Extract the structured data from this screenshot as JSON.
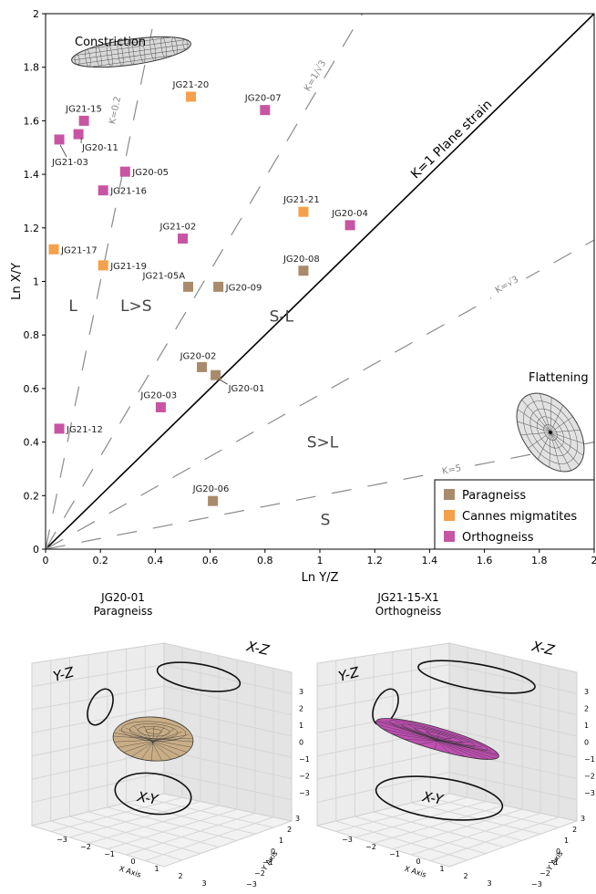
{
  "chart_data": [
    {
      "type": "scatter",
      "title": "",
      "xlabel": "Ln Y/Z",
      "ylabel": "Ln X/Y",
      "xlim": [
        0,
        2
      ],
      "ylim": [
        0,
        2
      ],
      "xticks": [
        "0",
        "0.2",
        "0.4",
        "0.6",
        "0.8",
        "1",
        "1.2",
        "1.4",
        "1.6",
        "1.8",
        "2"
      ],
      "yticks": [
        "0",
        "0.2",
        "0.4",
        "0.6",
        "0.8",
        "1",
        "1.2",
        "1.4",
        "1.6",
        "1.8",
        "2"
      ],
      "grid": false,
      "legend_position": "bottom-right",
      "series": [
        {
          "name": "Paragneiss",
          "color": "#a98b6b",
          "points": [
            {
              "label": "JG20-02",
              "x": 0.57,
              "y": 0.68
            },
            {
              "label": "JG20-01",
              "x": 0.62,
              "y": 0.65
            },
            {
              "label": "JG21-05A",
              "x": 0.52,
              "y": 0.98
            },
            {
              "label": "JG20-09",
              "x": 0.63,
              "y": 0.98
            },
            {
              "label": "JG20-08",
              "x": 0.94,
              "y": 1.04
            },
            {
              "label": "JG20-06",
              "x": 0.61,
              "y": 0.18
            }
          ]
        },
        {
          "name": "Cannes migmatites",
          "color": "#f5a04a",
          "points": [
            {
              "label": "JG21-20",
              "x": 0.53,
              "y": 1.69
            },
            {
              "label": "JG21-21",
              "x": 0.94,
              "y": 1.26
            },
            {
              "label": "JG21-17",
              "x": 0.03,
              "y": 1.12
            },
            {
              "label": "JG21-19",
              "x": 0.21,
              "y": 1.06
            }
          ]
        },
        {
          "name": "Orthogneiss",
          "color": "#c755a3",
          "points": [
            {
              "label": "JG21-15",
              "x": 0.14,
              "y": 1.6
            },
            {
              "label": "JG20-11",
              "x": 0.12,
              "y": 1.55
            },
            {
              "label": "JG21-03",
              "x": 0.05,
              "y": 1.53
            },
            {
              "label": "JG20-07",
              "x": 0.8,
              "y": 1.64
            },
            {
              "label": "JG20-05",
              "x": 0.29,
              "y": 1.41
            },
            {
              "label": "JG21-16",
              "x": 0.21,
              "y": 1.34
            },
            {
              "label": "JG21-02",
              "x": 0.5,
              "y": 1.16
            },
            {
              "label": "JG20-04",
              "x": 1.11,
              "y": 1.21
            },
            {
              "label": "JG20-03",
              "x": 0.42,
              "y": 0.53
            },
            {
              "label": "JG21-12",
              "x": 0.05,
              "y": 0.45
            }
          ]
        }
      ],
      "reference_lines": [
        {
          "label": "K=1 Plane strain",
          "k": 1,
          "style": "solid"
        },
        {
          "label": "K=0.2",
          "k": 0.2,
          "style": "dashed"
        },
        {
          "label": "K=1/√3",
          "k": 0.57735,
          "style": "dashed"
        },
        {
          "label": "K=√3",
          "k": 1.73205,
          "style": "dashed"
        },
        {
          "label": "K=5",
          "k": 5,
          "style": "dashed"
        }
      ],
      "field_labels": [
        "L",
        "L>S",
        "S-L",
        "S>L",
        "S"
      ],
      "annotations": [
        "Constriction",
        "Flattening"
      ]
    },
    {
      "type": "3d-ellipsoid",
      "title": "JG20-01\nParagneiss",
      "title_lines": [
        "JG20-01",
        "Paragneiss"
      ],
      "fill_color": "#c9ad86",
      "axes": [
        "X Axis",
        "Y Axis",
        "Z Axis"
      ],
      "axis_range": [
        -3,
        3
      ],
      "x_ticks": [
        "−3",
        "−2",
        "−1",
        "0",
        "1",
        "2",
        "3"
      ],
      "y_ticks": [
        "−3",
        "−2",
        "−1",
        "0",
        "1",
        "2",
        "3"
      ],
      "z_ticks": [
        "3",
        "2",
        "1",
        "0",
        "−1",
        "−2",
        "−3"
      ],
      "plane_labels": [
        "Y-Z",
        "X-Z",
        "X-Y"
      ]
    },
    {
      "type": "3d-ellipsoid",
      "title": "JG21-15-X1\nOrthogneiss",
      "title_lines": [
        "JG21-15-X1",
        "Orthogneiss"
      ],
      "fill_color": "#c04fb3",
      "axes": [
        "X Axis",
        "Y Axis",
        "Z Axis"
      ],
      "axis_range": [
        -3,
        3
      ],
      "x_ticks": [
        "−3",
        "−2",
        "−1",
        "0",
        "1",
        "2",
        "3"
      ],
      "y_ticks": [
        "−3",
        "−2",
        "−1",
        "0",
        "1",
        "2",
        "3"
      ],
      "z_ticks": [
        "3",
        "2",
        "1",
        "0",
        "−1",
        "−2",
        "−3"
      ],
      "plane_labels": [
        "Y-Z",
        "X-Z",
        "X-Y"
      ]
    }
  ]
}
